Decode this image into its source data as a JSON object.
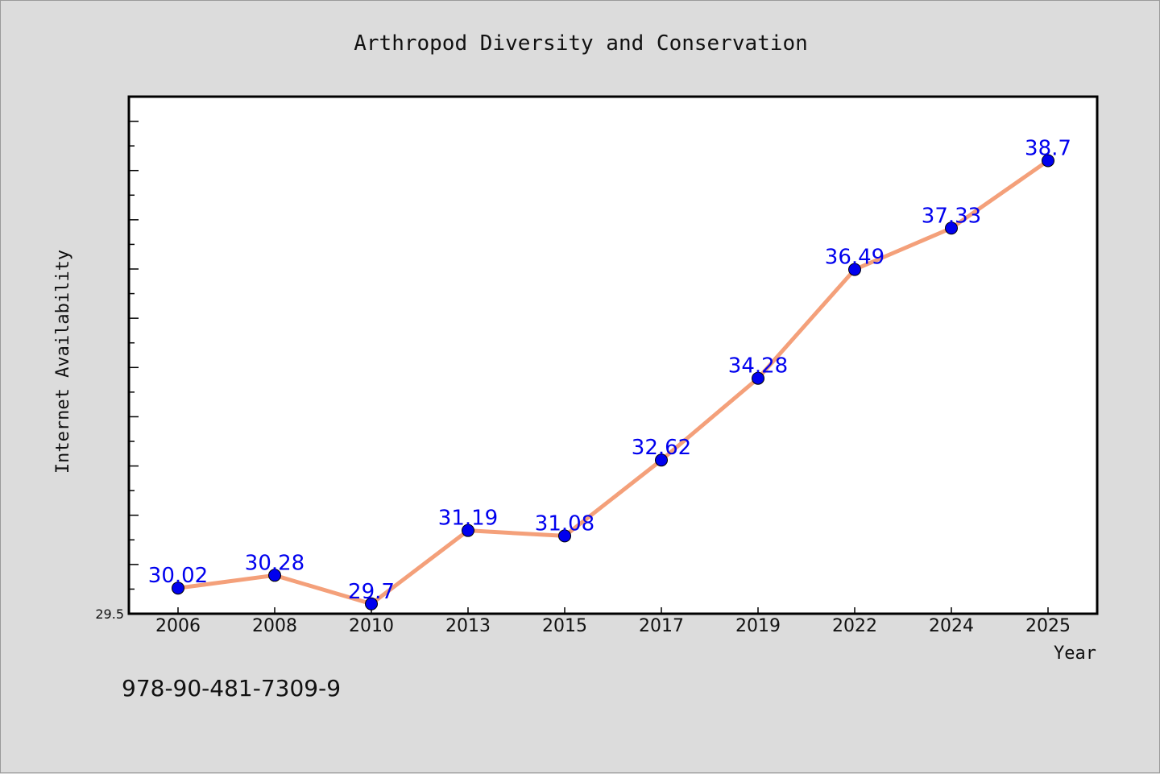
{
  "chart_data": {
    "type": "line",
    "title": "Arthropod Diversity and Conservation",
    "xlabel": "Year",
    "ylabel": "Internet Availability",
    "categories": [
      "2006",
      "2008",
      "2010",
      "2013",
      "2015",
      "2017",
      "2019",
      "2022",
      "2024",
      "2025"
    ],
    "series": [
      {
        "values": [
          30.02,
          30.28,
          29.7,
          31.19,
          31.08,
          32.62,
          34.28,
          36.49,
          37.33,
          38.7
        ],
        "labels": [
          "30.02",
          "30.28",
          "29.7",
          "31.19",
          "31.08",
          "32.62",
          "34.28",
          "36.49",
          "37.33",
          "38.7"
        ],
        "line_color": "#f4a07a",
        "marker_color": "#0000ee",
        "label_color": "#0000ee"
      }
    ],
    "ylim": [
      29.5,
      40.0
    ],
    "yticks_labeled": [
      "29.5"
    ],
    "grid": false,
    "legend": "none"
  },
  "footer": {
    "isbn": "978-90-481-7309-9"
  },
  "colors": {
    "background": "#dcdcdc",
    "plot_background": "#ffffff"
  }
}
